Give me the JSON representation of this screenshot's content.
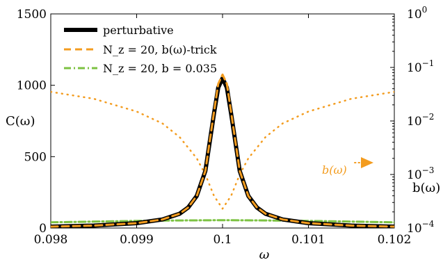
{
  "chart_data": {
    "type": "line",
    "xlabel": "ω",
    "ylabel": "C(ω)",
    "y2label": "b(ω)",
    "xlim": [
      0.098,
      0.102
    ],
    "ylim": [
      0,
      1500
    ],
    "y2lim": [
      0.0001,
      1
    ],
    "y2scale": "log",
    "x_ticks": [
      0.098,
      0.099,
      0.1,
      0.101,
      0.102
    ],
    "x_tick_labels": [
      "0.098",
      "0.099",
      "0.1",
      "0.101",
      "0.102"
    ],
    "y_ticks": [
      0,
      500,
      1000,
      1500
    ],
    "y_tick_labels": [
      "0",
      "500",
      "1000",
      "1500"
    ],
    "y2_ticks": [
      0.0001,
      0.001,
      0.01,
      0.1,
      1
    ],
    "y2_tick_labels": [
      {
        "base": "10",
        "exp": "−4"
      },
      {
        "base": "10",
        "exp": "−3"
      },
      {
        "base": "10",
        "exp": "−2"
      },
      {
        "base": "10",
        "exp": "−1"
      },
      {
        "base": "10",
        "exp": "0"
      }
    ],
    "legend_position": "top-left",
    "series": [
      {
        "name": "perturbative",
        "color": "#000000",
        "style": "solid",
        "axis": "left",
        "x": [
          0.098,
          0.0985,
          0.099,
          0.0993,
          0.0995,
          0.0996,
          0.0997,
          0.0998,
          0.0999,
          0.09995,
          0.1,
          0.10005,
          0.1001,
          0.1002,
          0.1003,
          0.1004,
          0.1005,
          0.1007,
          0.101,
          0.1015,
          0.102
        ],
        "y": [
          10,
          17,
          34,
          60,
          100,
          144,
          225,
          400,
          800,
          984,
          1050,
          984,
          800,
          400,
          225,
          144,
          100,
          60,
          34,
          17,
          10
        ]
      },
      {
        "name": "N_z = 20, b(ω)-trick",
        "color": "#f39c1f",
        "style": "dashed",
        "axis": "left",
        "x": [
          0.098,
          0.0985,
          0.099,
          0.0993,
          0.0995,
          0.0996,
          0.0997,
          0.0998,
          0.0999,
          0.09995,
          0.1,
          0.10005,
          0.1001,
          0.1002,
          0.1003,
          0.1004,
          0.1005,
          0.1007,
          0.101,
          0.1015,
          0.102
        ],
        "y": [
          10,
          17,
          34,
          60,
          100,
          144,
          225,
          400,
          810,
          1010,
          1075,
          1010,
          810,
          400,
          225,
          144,
          100,
          60,
          34,
          17,
          10
        ]
      },
      {
        "name": "N_z = 20, b = 0.035",
        "color": "#7cc242",
        "style": "dash-dot",
        "axis": "left",
        "x": [
          0.098,
          0.0985,
          0.099,
          0.0995,
          0.1,
          0.1005,
          0.101,
          0.1015,
          0.102
        ],
        "y": [
          40,
          45,
          50,
          53,
          55,
          53,
          50,
          45,
          40
        ]
      },
      {
        "name": "b(ω)",
        "color": "#f39c1f",
        "style": "dotted",
        "axis": "right",
        "x": [
          0.098,
          0.0985,
          0.099,
          0.0993,
          0.0995,
          0.0997,
          0.0998,
          0.0999,
          0.1,
          0.1001,
          0.1002,
          0.1003,
          0.1005,
          0.1007,
          0.101,
          0.1015,
          0.102
        ],
        "y": [
          0.035,
          0.026,
          0.015,
          0.009,
          0.005,
          0.002,
          0.001,
          0.0004,
          0.00023,
          0.0004,
          0.001,
          0.002,
          0.005,
          0.009,
          0.015,
          0.026,
          0.035
        ]
      }
    ],
    "legend": [
      {
        "label": "perturbative"
      },
      {
        "label": "N_z = 20, b(ω)-trick"
      },
      {
        "label": "N_z = 20, b = 0.035"
      }
    ],
    "annotation": {
      "text": "b(ω)",
      "color": "#f39c1f",
      "points_to": "right axis"
    }
  }
}
